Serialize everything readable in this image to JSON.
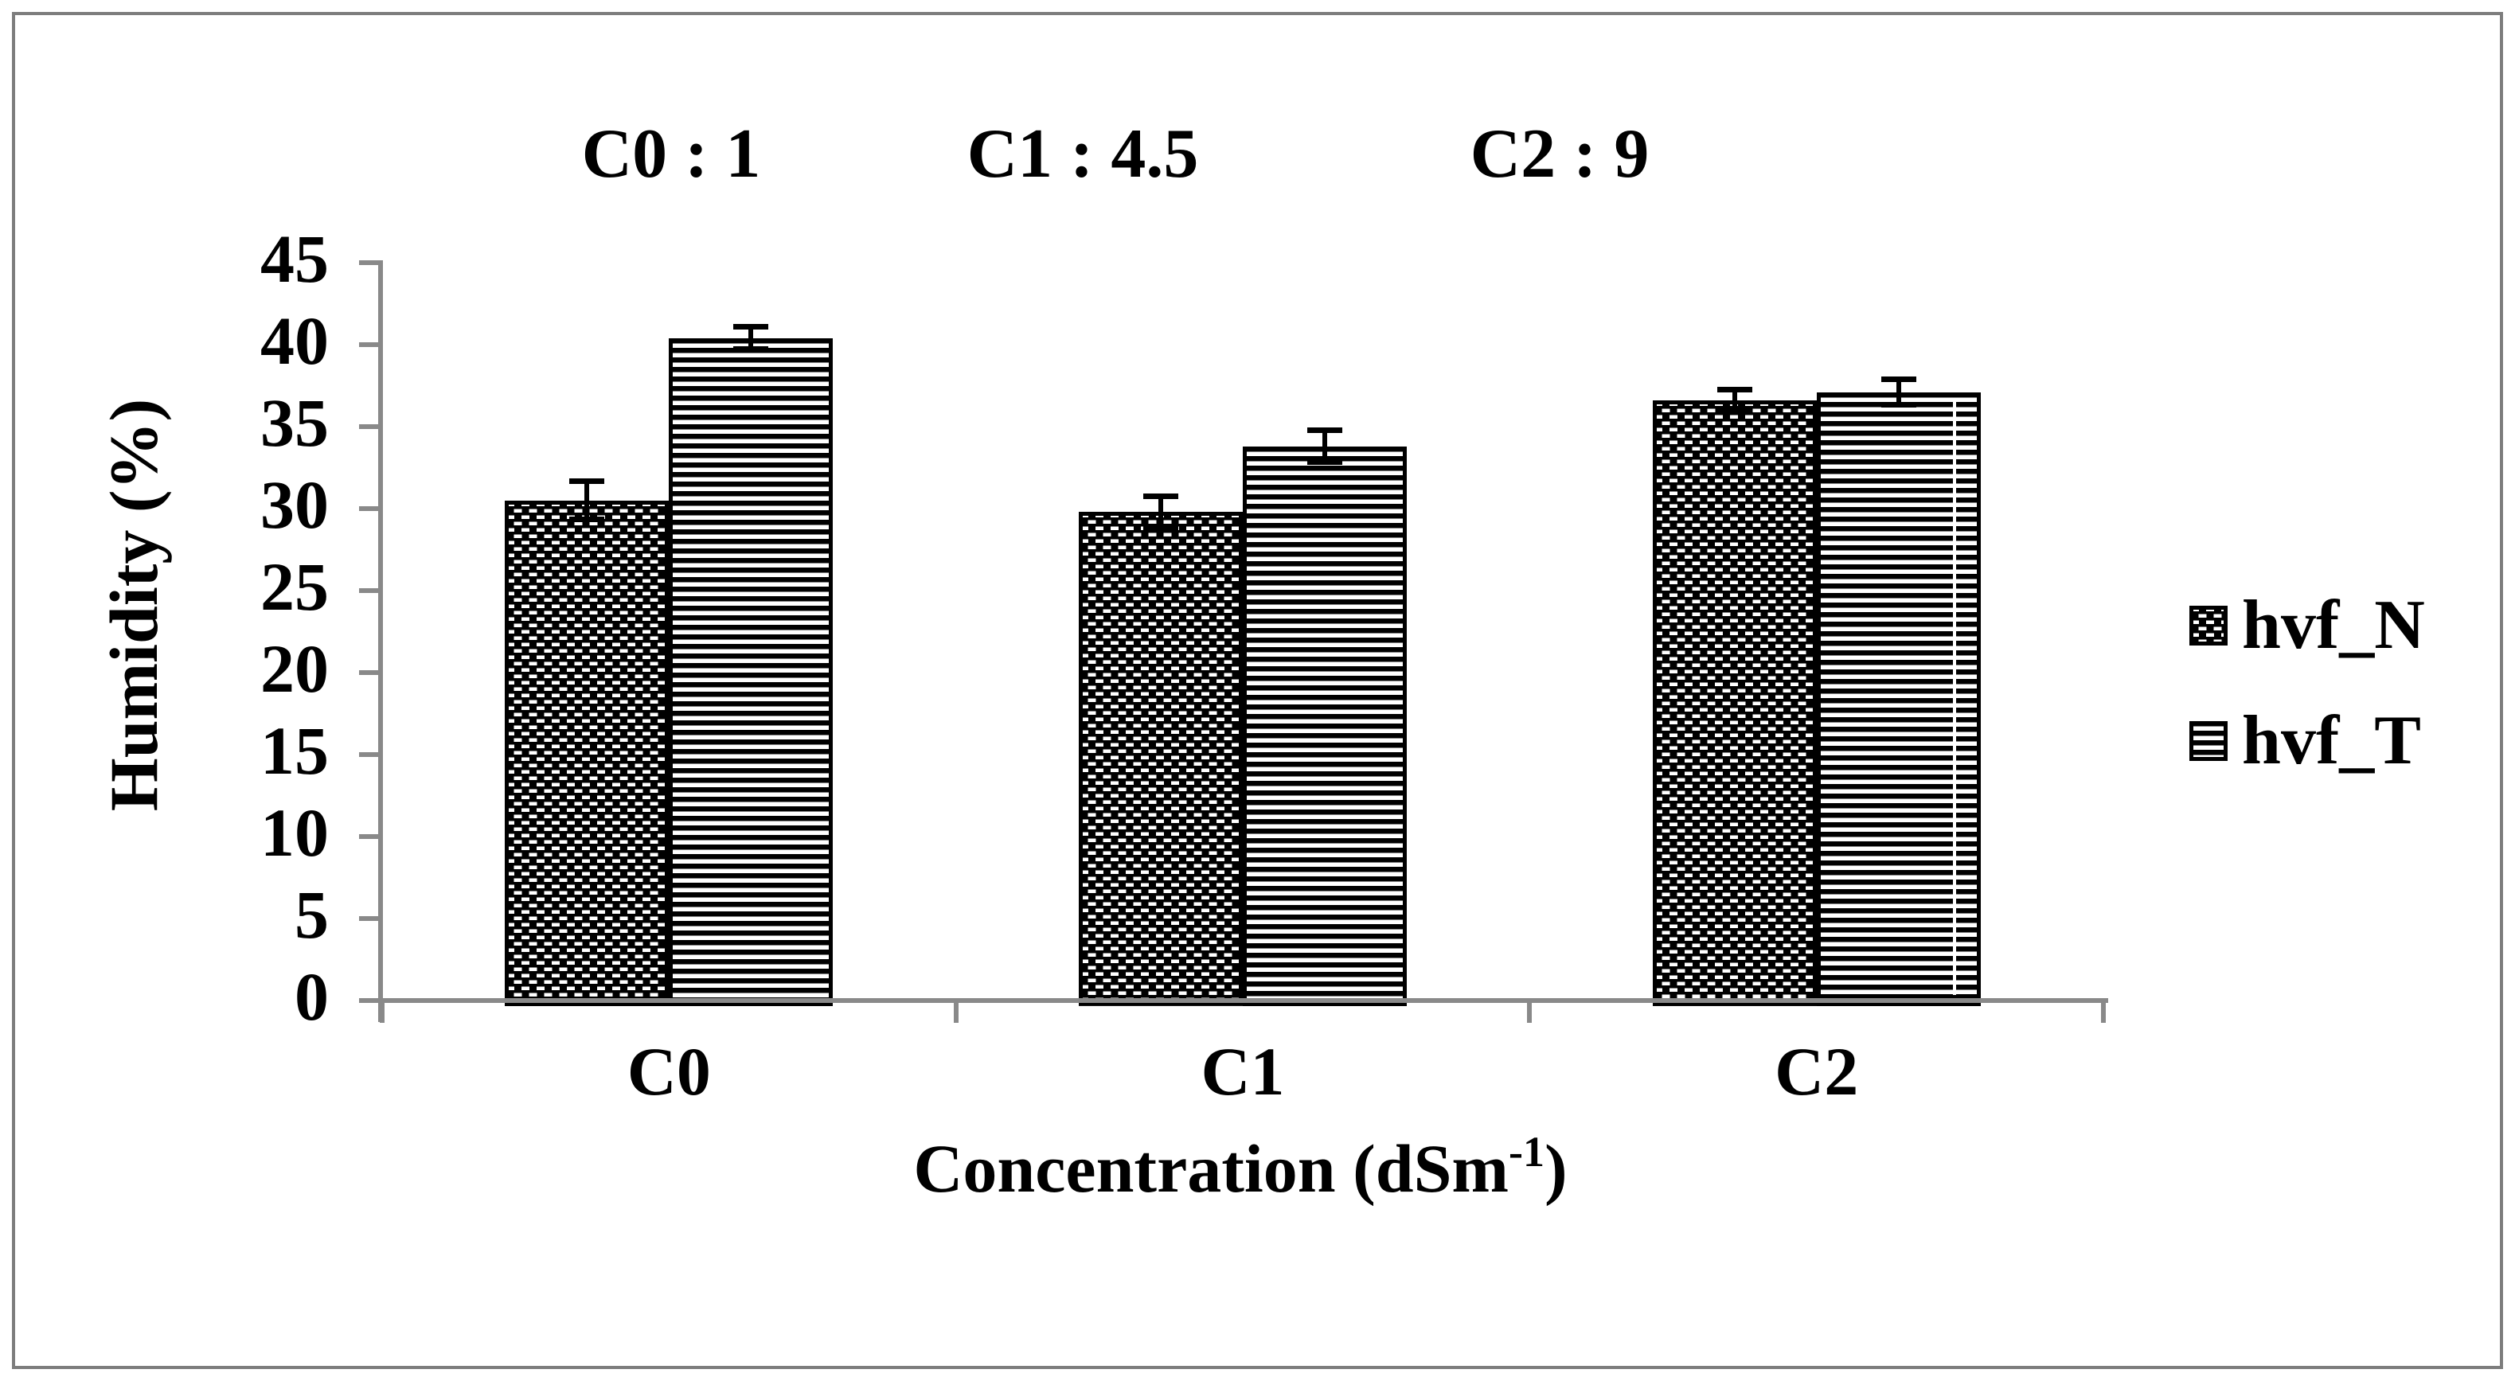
{
  "chart_data": {
    "type": "bar",
    "annotations": [
      {
        "label": "C0 : 1"
      },
      {
        "label": "C1 : 4.5"
      },
      {
        "label": "C2 : 9"
      }
    ],
    "categories": [
      "C0",
      "C1",
      "C2"
    ],
    "series": [
      {
        "name": "hvf_N",
        "pattern": "checker-dash-on-black",
        "values": [
          30.5,
          29.8,
          36.6
        ],
        "errors": [
          1.2,
          1.0,
          0.7
        ]
      },
      {
        "name": "hvf_T",
        "pattern": "horizontal-stripes",
        "values": [
          40.4,
          33.8,
          37.1
        ],
        "errors": [
          0.7,
          1.0,
          0.8
        ]
      }
    ],
    "ylabel": "Humidity (%)",
    "xlabel": {
      "pre": "Concentration (dSm",
      "sup": "-1",
      "post": ")"
    },
    "ylim": [
      0,
      45
    ],
    "yticks": [
      0,
      5,
      10,
      15,
      20,
      25,
      30,
      35,
      40,
      45
    ],
    "legend": {
      "position": "right",
      "entries": [
        "hvf_N",
        "hvf_T"
      ]
    },
    "grid": false,
    "colors": {
      "bar_fill": "#000000",
      "axis": "#898989",
      "frame": "#7d7d7d",
      "background": "#ffffff"
    }
  }
}
